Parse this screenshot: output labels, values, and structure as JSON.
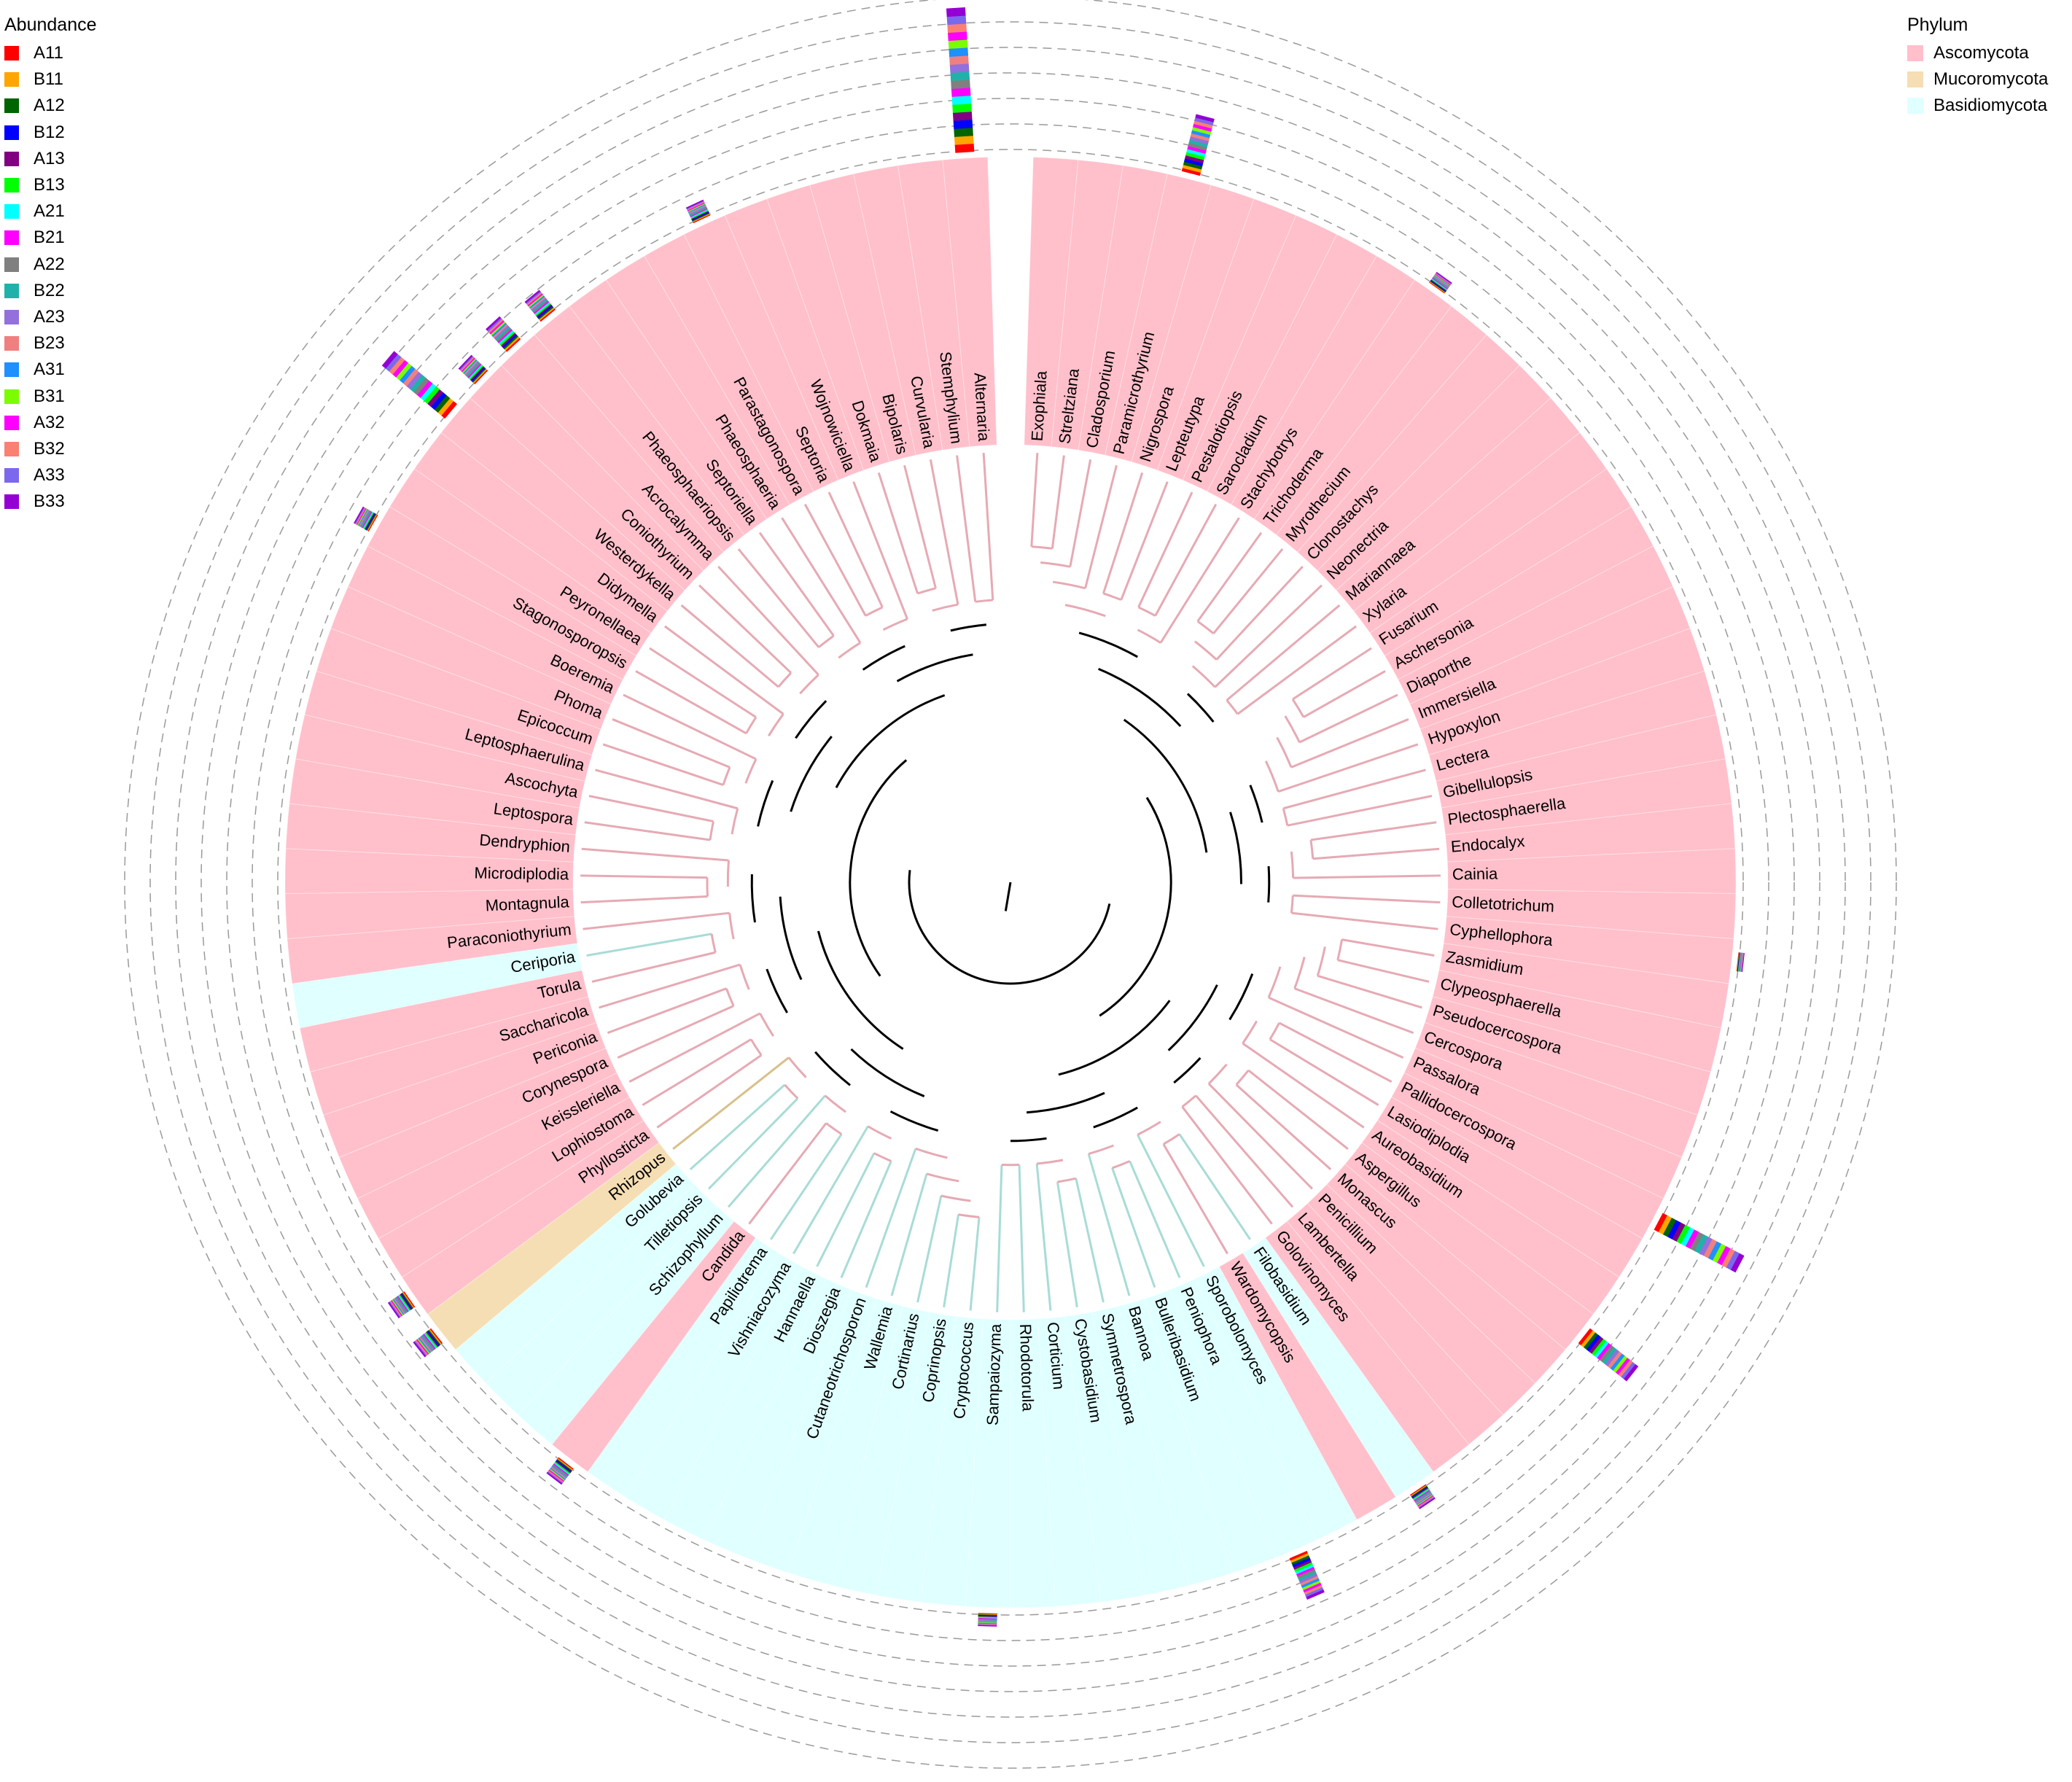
{
  "abundance_legend": {
    "title": "Abundance",
    "items": [
      {
        "label": "A11",
        "color": "#ff0000"
      },
      {
        "label": "B11",
        "color": "#ffa500"
      },
      {
        "label": "A12",
        "color": "#006400"
      },
      {
        "label": "B12",
        "color": "#0000ff"
      },
      {
        "label": "A13",
        "color": "#800080"
      },
      {
        "label": "B13",
        "color": "#00ff00"
      },
      {
        "label": "A21",
        "color": "#00ffff"
      },
      {
        "label": "B21",
        "color": "#ff00ff"
      },
      {
        "label": "A22",
        "color": "#808080"
      },
      {
        "label": "B22",
        "color": "#20b2aa"
      },
      {
        "label": "A23",
        "color": "#9370db"
      },
      {
        "label": "B23",
        "color": "#f08080"
      },
      {
        "label": "A31",
        "color": "#1e90ff"
      },
      {
        "label": "B31",
        "color": "#7cfc00"
      },
      {
        "label": "A32",
        "color": "#ff00ff"
      },
      {
        "label": "B32",
        "color": "#fa8072"
      },
      {
        "label": "A33",
        "color": "#7b68ee"
      },
      {
        "label": "B33",
        "color": "#9400d3"
      }
    ]
  },
  "phylum_legend": {
    "title": "Phylum",
    "items": [
      {
        "label": "Ascomycota",
        "color": "#ffc0cb",
        "key": "A"
      },
      {
        "label": "Mucoromycota",
        "color": "#f5deb3",
        "key": "M"
      },
      {
        "label": "Basidiomycota",
        "color": "#e0ffff",
        "key": "B"
      }
    ]
  },
  "tree": {
    "genera": [
      {
        "name": "Exophiala",
        "phylum": "A"
      },
      {
        "name": "Streltziana",
        "phylum": "A"
      },
      {
        "name": "Cladosporium",
        "phylum": "A"
      },
      {
        "name": "Paramicrothyrium",
        "phylum": "A"
      },
      {
        "name": "Nigrospora",
        "phylum": "A"
      },
      {
        "name": "Lepteutypa",
        "phylum": "A"
      },
      {
        "name": "Pestalotiopsis",
        "phylum": "A"
      },
      {
        "name": "Sarocladium",
        "phylum": "A"
      },
      {
        "name": "Stachybotrys",
        "phylum": "A"
      },
      {
        "name": "Trichoderma",
        "phylum": "A"
      },
      {
        "name": "Myrothecium",
        "phylum": "A"
      },
      {
        "name": "Clonostachys",
        "phylum": "A"
      },
      {
        "name": "Neonectria",
        "phylum": "A"
      },
      {
        "name": "Mariannaea",
        "phylum": "A"
      },
      {
        "name": "Xylaria",
        "phylum": "A"
      },
      {
        "name": "Fusarium",
        "phylum": "A"
      },
      {
        "name": "Aschersonia",
        "phylum": "A"
      },
      {
        "name": "Diaporthe",
        "phylum": "A"
      },
      {
        "name": "Immersiella",
        "phylum": "A"
      },
      {
        "name": "Hypoxylon",
        "phylum": "A"
      },
      {
        "name": "Lectera",
        "phylum": "A"
      },
      {
        "name": "Gibellulopsis",
        "phylum": "A"
      },
      {
        "name": "Plectosphaerella",
        "phylum": "A"
      },
      {
        "name": "Endocalyx",
        "phylum": "A"
      },
      {
        "name": "Cainia",
        "phylum": "A"
      },
      {
        "name": "Colletotrichum",
        "phylum": "A"
      },
      {
        "name": "Cyphellophora",
        "phylum": "A"
      },
      {
        "name": "Zasmidium",
        "phylum": "A"
      },
      {
        "name": "Clypeosphaerella",
        "phylum": "A"
      },
      {
        "name": "Pseudocercospora",
        "phylum": "A"
      },
      {
        "name": "Cercospora",
        "phylum": "A"
      },
      {
        "name": "Passalora",
        "phylum": "A"
      },
      {
        "name": "Pallidocercospora",
        "phylum": "A"
      },
      {
        "name": "Lasiodiplodia",
        "phylum": "A"
      },
      {
        "name": "Aureobasidium",
        "phylum": "A"
      },
      {
        "name": "Aspergillus",
        "phylum": "A"
      },
      {
        "name": "Monascus",
        "phylum": "A"
      },
      {
        "name": "Penicillium",
        "phylum": "A"
      },
      {
        "name": "Lambertella",
        "phylum": "A"
      },
      {
        "name": "Golovinomyces",
        "phylum": "A"
      },
      {
        "name": "Filobasidium",
        "phylum": "B"
      },
      {
        "name": "Wardomycopsis",
        "phylum": "A"
      },
      {
        "name": "Sporobolomyces",
        "phylum": "B"
      },
      {
        "name": "Peniophora",
        "phylum": "B"
      },
      {
        "name": "Bulleribasidium",
        "phylum": "B"
      },
      {
        "name": "Bannoa",
        "phylum": "B"
      },
      {
        "name": "Symmetrospora",
        "phylum": "B"
      },
      {
        "name": "Cystobasidium",
        "phylum": "B"
      },
      {
        "name": "Corticium",
        "phylum": "B"
      },
      {
        "name": "Rhodotorula",
        "phylum": "B"
      },
      {
        "name": "Sampaiozyma",
        "phylum": "B"
      },
      {
        "name": "Cryptococcus",
        "phylum": "B"
      },
      {
        "name": "Coprinopsis",
        "phylum": "B"
      },
      {
        "name": "Cortinarius",
        "phylum": "B"
      },
      {
        "name": "Wallemia",
        "phylum": "B"
      },
      {
        "name": "Cutaneotrichosporon",
        "phylum": "B"
      },
      {
        "name": "Dioszegia",
        "phylum": "B"
      },
      {
        "name": "Hannaella",
        "phylum": "B"
      },
      {
        "name": "Vishniacozyma",
        "phylum": "B"
      },
      {
        "name": "Papiliotrema",
        "phylum": "B"
      },
      {
        "name": "Candida",
        "phylum": "A"
      },
      {
        "name": "Schizophyllum",
        "phylum": "B"
      },
      {
        "name": "Tilletiopsis",
        "phylum": "B"
      },
      {
        "name": "Golubevia",
        "phylum": "B"
      },
      {
        "name": "Rhizopus",
        "phylum": "M"
      },
      {
        "name": "Phyllosticta",
        "phylum": "A"
      },
      {
        "name": "Lophiostoma",
        "phylum": "A"
      },
      {
        "name": "Keissleriella",
        "phylum": "A"
      },
      {
        "name": "Corynespora",
        "phylum": "A"
      },
      {
        "name": "Periconia",
        "phylum": "A"
      },
      {
        "name": "Saccharicola",
        "phylum": "A"
      },
      {
        "name": "Torula",
        "phylum": "A"
      },
      {
        "name": "Ceriporia",
        "phylum": "B"
      },
      {
        "name": "Paraconiothyrium",
        "phylum": "A"
      },
      {
        "name": "Montagnula",
        "phylum": "A"
      },
      {
        "name": "Microdiplodia",
        "phylum": "A"
      },
      {
        "name": "Dendryphion",
        "phylum": "A"
      },
      {
        "name": "Leptospora",
        "phylum": "A"
      },
      {
        "name": "Ascochyta",
        "phylum": "A"
      },
      {
        "name": "Leptosphaerulina",
        "phylum": "A"
      },
      {
        "name": "Epicoccum",
        "phylum": "A"
      },
      {
        "name": "Phoma",
        "phylum": "A"
      },
      {
        "name": "Boeremia",
        "phylum": "A"
      },
      {
        "name": "Stagonosporopsis",
        "phylum": "A"
      },
      {
        "name": "Peyronellaea",
        "phylum": "A"
      },
      {
        "name": "Didymella",
        "phylum": "A"
      },
      {
        "name": "Westerdykella",
        "phylum": "A"
      },
      {
        "name": "Coniothyrium",
        "phylum": "A"
      },
      {
        "name": "Acrocalymma",
        "phylum": "A"
      },
      {
        "name": "Phaeosphaeriopsis",
        "phylum": "A"
      },
      {
        "name": "Septoriella",
        "phylum": "A"
      },
      {
        "name": "Phaeosphaeria",
        "phylum": "A"
      },
      {
        "name": "Parastagonospora",
        "phylum": "A"
      },
      {
        "name": "Septoria",
        "phylum": "A"
      },
      {
        "name": "Wojnowiciella",
        "phylum": "A"
      },
      {
        "name": "Dokmaia",
        "phylum": "A"
      },
      {
        "name": "Bipolaris",
        "phylum": "A"
      },
      {
        "name": "Curvularia",
        "phylum": "A"
      },
      {
        "name": "Stemphylium",
        "phylum": "A"
      },
      {
        "name": "Alternaria",
        "phylum": "A"
      }
    ],
    "abundance_bars": [
      {
        "genus": "Alternaria",
        "level": 1.0
      },
      {
        "genus": "Paramicrothyrium",
        "level": 0.38
      },
      {
        "genus": "Cyphellophora",
        "level": 0.0
      },
      {
        "genus": "Pallidocercospora",
        "level": 0.62
      },
      {
        "genus": "Aspergillus",
        "level": 0.4
      },
      {
        "genus": "Filobasidium",
        "level": 0.08
      },
      {
        "genus": "Peniophora",
        "level": 0.28
      },
      {
        "genus": "Sampaiozyma",
        "level": 0.05
      },
      {
        "genus": "Candida",
        "level": 0.1
      },
      {
        "genus": "Rhizopus",
        "level": 0.12
      },
      {
        "genus": "Phyllosticta",
        "level": 0.1
      },
      {
        "genus": "Westerdykella",
        "level": 0.55
      },
      {
        "genus": "Coniothyrium",
        "level": 0.12
      },
      {
        "genus": "Acrocalymma",
        "level": 0.18
      },
      {
        "genus": "Phaeosphaeriopsis",
        "level": 0.14
      },
      {
        "genus": "Stagonosporopsis",
        "level": 0.08
      },
      {
        "genus": "Septoria",
        "level": 0.08
      },
      {
        "genus": "Trichoderma",
        "level": 0.05
      }
    ]
  }
}
